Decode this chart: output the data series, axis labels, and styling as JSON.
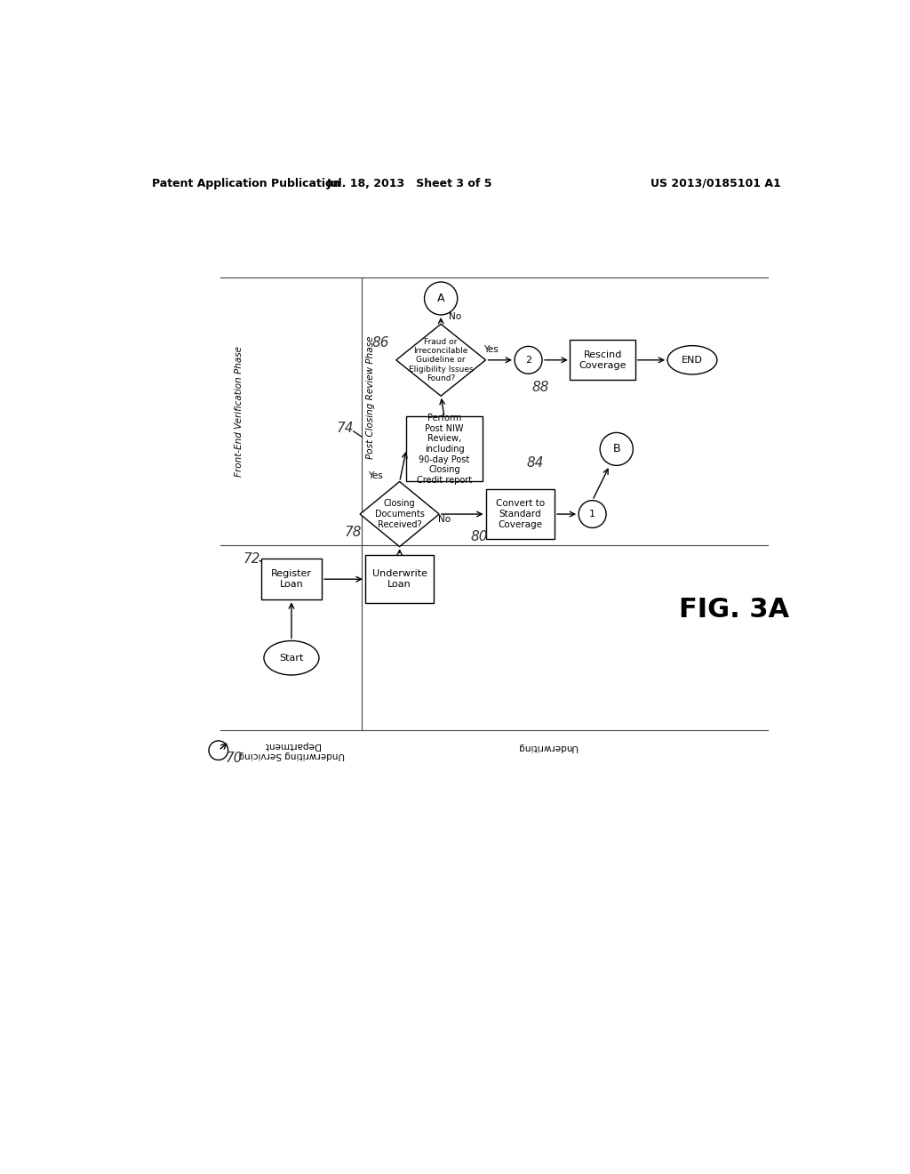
{
  "bg_color": "#ffffff",
  "header_left": "Patent Application Publication",
  "header_mid": "Jul. 18, 2013   Sheet 3 of 5",
  "header_right": "US 2013/0185101 A1",
  "fig_label": "FIG. 3A",
  "label_70": "70",
  "label_72": "72",
  "label_74": "74",
  "label_78": "78",
  "label_80": "80",
  "label_84": "84",
  "label_86": "86",
  "label_88": "88",
  "phase_label_left": "Front-End Verification Phase",
  "phase_label_right": "Post Closing Review Phase",
  "lane_label_usd": "Underwriting Servicing\nDepartment",
  "lane_label_uw": "Underwriting",
  "node_start": "Start",
  "node_register": "Register\nLoan",
  "node_underwrite": "Underwrite\nLoan",
  "node_closing_docs": "Closing\nDocuments\nReceived?",
  "node_convert": "Convert to\nStandard\nCoverage",
  "node_perform": "Perform\nPost NIW\nReview,\nincluding\n90-day Post\nClosing\nCredit report",
  "node_fraud": "Fraud or\nIrreconcilable\nGuideline or\nEligibility Issues\nFound?",
  "node_rescind": "Rescind\nCoverage",
  "node_end": "END",
  "node_A": "A",
  "node_B": "B",
  "node_1": "1",
  "node_2": "2",
  "yes_label": "Yes",
  "no_label": "No"
}
